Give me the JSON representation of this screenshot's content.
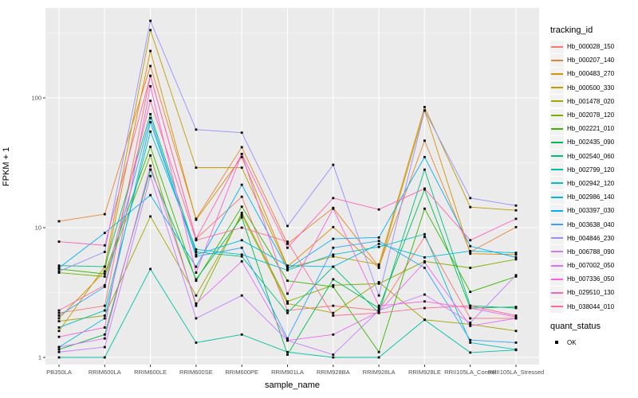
{
  "chart_data": {
    "type": "line",
    "title": "",
    "xlabel": "sample_name",
    "ylabel": "FPKM + 1",
    "y_scale": "log10",
    "y_ticks": [
      1,
      10,
      100
    ],
    "y_minor_log": [
      0.5,
      1.5,
      2.5
    ],
    "ylim": [
      0.88,
      490
    ],
    "grid": "on",
    "legend_position": "right",
    "legend_title": "tracking_id",
    "quant_legend_title": "quant_status",
    "quant_status_label": "OK",
    "panel_bg": "#ebebeb",
    "grid_color": "#ffffff",
    "point_color": "#000000",
    "axis_text_color": "#4d4d4d",
    "categories": [
      "PB350LA",
      "RRIM600LA",
      "RRIM600LE",
      "RRIM600SE",
      "RRIM600PE",
      "RRIM901LA",
      "RRIM928BA",
      "RRIM928LA",
      "RRIM928LE",
      "RRII105LA_Control",
      "RRII105LA_Stressed"
    ],
    "series": [
      {
        "name": "Hb_000028_150",
        "color": "#F8766D",
        "values": [
          2.2,
          2.5,
          148,
          8.2,
          17.3,
          2.3,
          2.5,
          2.3,
          8.5,
          2.0,
          2.0
        ]
      },
      {
        "name": "Hb_000207_140",
        "color": "#EA8331",
        "values": [
          11.2,
          12.7,
          176,
          11.7,
          41.7,
          7.5,
          14.2,
          5.0,
          46.8,
          6.5,
          10.1
        ]
      },
      {
        "name": "Hb_000483_270",
        "color": "#D89000",
        "values": [
          2.0,
          4.6,
          230,
          11.5,
          35,
          5.0,
          10.1,
          4.9,
          80,
          6.3,
          6.2
        ]
      },
      {
        "name": "Hb_000500_330",
        "color": "#C09B00",
        "values": [
          1.6,
          5.0,
          333,
          29,
          29,
          4.9,
          6.0,
          5.2,
          85,
          14.4,
          13.6
        ]
      },
      {
        "name": "Hb_001478_020",
        "color": "#A3A500",
        "values": [
          1.9,
          2.1,
          12.2,
          3.0,
          12.5,
          2.6,
          2.2,
          3.8,
          1.95,
          1.8,
          1.6
        ]
      },
      {
        "name": "Hb_002078_120",
        "color": "#7CAE00",
        "values": [
          4.5,
          4.2,
          36,
          2.5,
          13,
          2.7,
          3.6,
          3.7,
          5.5,
          4.9,
          5.7
        ]
      },
      {
        "name": "Hb_002221_010",
        "color": "#39B600",
        "values": [
          4.8,
          4.4,
          42,
          3.9,
          14.5,
          3.9,
          3.5,
          1.1,
          14,
          3.2,
          4.2
        ]
      },
      {
        "name": "Hb_002435_090",
        "color": "#00BB4E",
        "values": [
          1.15,
          1.5,
          28,
          4.0,
          12,
          1.05,
          4.0,
          2.4,
          19.7,
          2.4,
          2.45
        ]
      },
      {
        "name": "Hb_002540_060",
        "color": "#00BF7D",
        "values": [
          5.1,
          5.0,
          75,
          6.5,
          6.0,
          2.2,
          5.0,
          2.2,
          28,
          2.5,
          2.4
        ]
      },
      {
        "name": "Hb_002799_120",
        "color": "#00C1A3",
        "values": [
          1.0,
          1.0,
          4.8,
          1.3,
          1.5,
          1.1,
          1.0,
          1.0,
          1.95,
          1.09,
          1.14
        ]
      },
      {
        "name": "Hb_002942_120",
        "color": "#00BFC4",
        "values": [
          1.7,
          2.3,
          55,
          6.8,
          6.2,
          4.7,
          6.2,
          7.1,
          8.9,
          1.3,
          1.15
        ]
      },
      {
        "name": "Hb_002986_140",
        "color": "#00BAE0",
        "values": [
          1.2,
          2.0,
          65,
          6.2,
          8.0,
          5.1,
          5.0,
          7.5,
          5.9,
          6.6,
          6.4
        ]
      },
      {
        "name": "Hb_003397_030",
        "color": "#00B0F6",
        "values": [
          4.9,
          9.1,
          17.8,
          5.0,
          21.4,
          4.8,
          8.2,
          8.4,
          35,
          7.2,
          5.9
        ]
      },
      {
        "name": "Hb_003638_040",
        "color": "#35A2FF",
        "values": [
          2.1,
          3.5,
          70,
          6.0,
          7.0,
          1.4,
          7.0,
          7.9,
          4.9,
          1.36,
          1.3
        ]
      },
      {
        "name": "Hb_004846_230",
        "color": "#9590FF",
        "values": [
          4.6,
          6.5,
          393,
          57,
          54,
          10.3,
          30.5,
          3.0,
          80,
          16.9,
          14.8
        ]
      },
      {
        "name": "Hb_006788_090",
        "color": "#C77CFF",
        "values": [
          1.1,
          1.2,
          25,
          2.0,
          3.0,
          1.35,
          1.05,
          2.3,
          3.05,
          1.85,
          4.3
        ]
      },
      {
        "name": "Hb_007002_050",
        "color": "#E76BF3",
        "values": [
          1.2,
          1.4,
          30,
          2.6,
          5.5,
          1.35,
          1.5,
          2.25,
          5.4,
          1.75,
          2.0
        ]
      },
      {
        "name": "Hb_007336_050",
        "color": "#FA62DB",
        "values": [
          1.44,
          1.7,
          123,
          4.5,
          37,
          3.1,
          14,
          2.5,
          2.7,
          2.4,
          2.05
        ]
      },
      {
        "name": "Hb_029510_130",
        "color": "#FF62BC",
        "values": [
          7.8,
          7.3,
          148,
          8.2,
          37,
          7.0,
          16.9,
          13.8,
          20,
          8.0,
          11.7
        ]
      },
      {
        "name": "Hb_038044_010",
        "color": "#FF6A98",
        "values": [
          2.3,
          3.6,
          95,
          8.0,
          10,
          7.8,
          2.1,
          2.2,
          2.4,
          2.5,
          2.1
        ]
      }
    ]
  }
}
